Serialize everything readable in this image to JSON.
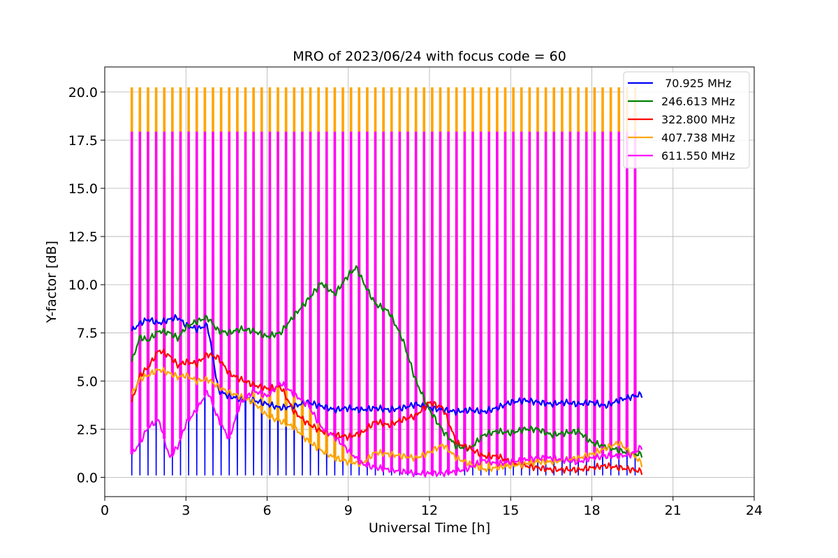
{
  "chart_data": {
    "type": "line",
    "title": "MRO of 2023/06/24 with focus code = 60",
    "xlabel": "Universal Time [h]",
    "ylabel": "Y-factor [dB]",
    "xlim": [
      0,
      24
    ],
    "ylim": [
      -1.0,
      21.3
    ],
    "xticks": [
      0,
      3,
      6,
      9,
      12,
      15,
      18,
      21,
      24
    ],
    "yticks": [
      0.0,
      2.5,
      5.0,
      7.5,
      10.0,
      12.5,
      15.0,
      17.5,
      20.0
    ],
    "xtick_labels": [
      "0",
      "3",
      "6",
      "9",
      "12",
      "15",
      "18",
      "21",
      "24"
    ],
    "ytick_labels": [
      "0.0",
      "2.5",
      "5.0",
      "7.5",
      "10.0",
      "12.5",
      "15.0",
      "17.5",
      "20.0"
    ],
    "grid": true,
    "legend_position": "top-right",
    "calibration_spikes": {
      "start": 1.0,
      "end": 19.85,
      "period": 0.3,
      "width": 0.06,
      "peak_values": {
        "407.738 MHz": 20.2,
        "611.550 MHz": 17.9
      }
    },
    "series": [
      {
        "name": " 70.925 MHz",
        "color": "#0000ff",
        "x": [
          1.0,
          1.3,
          1.6,
          2.0,
          2.4,
          2.7,
          3.0,
          3.4,
          3.8,
          4.2,
          4.6,
          5.0,
          5.5,
          6.0,
          6.5,
          7.0,
          7.5,
          8.0,
          8.5,
          9.0,
          9.5,
          10.0,
          10.5,
          11.0,
          11.5,
          12.0,
          12.5,
          13.0,
          13.5,
          14.0,
          14.5,
          15.0,
          15.5,
          16.0,
          16.5,
          17.0,
          17.5,
          18.0,
          18.5,
          19.0,
          19.5,
          19.85
        ],
        "y": [
          7.6,
          8.0,
          8.2,
          8.0,
          8.2,
          8.3,
          7.9,
          7.7,
          7.9,
          4.5,
          4.2,
          4.1,
          4.0,
          3.8,
          3.6,
          3.7,
          3.9,
          3.7,
          3.5,
          3.6,
          3.5,
          3.6,
          3.5,
          3.6,
          3.8,
          3.6,
          3.5,
          3.4,
          3.5,
          3.4,
          3.6,
          3.9,
          4.0,
          3.9,
          3.8,
          3.9,
          3.8,
          3.9,
          3.7,
          4.0,
          4.2,
          4.3
        ]
      },
      {
        "name": "246.613 MHz",
        "color": "#008000",
        "x": [
          1.0,
          1.3,
          1.6,
          2.0,
          2.4,
          2.7,
          3.0,
          3.4,
          3.8,
          4.2,
          4.6,
          5.0,
          5.5,
          6.0,
          6.5,
          7.0,
          7.5,
          8.0,
          8.5,
          9.0,
          9.3,
          9.6,
          10.0,
          10.5,
          11.0,
          11.5,
          12.0,
          12.5,
          13.0,
          13.5,
          14.0,
          14.5,
          15.0,
          15.5,
          16.0,
          16.5,
          17.0,
          17.5,
          18.0,
          18.5,
          19.0,
          19.5,
          19.85
        ],
        "y": [
          6.0,
          7.3,
          7.1,
          7.6,
          7.5,
          7.2,
          7.8,
          8.1,
          8.3,
          7.6,
          7.5,
          7.7,
          7.6,
          7.3,
          7.5,
          8.4,
          9.2,
          10.1,
          9.5,
          10.5,
          10.9,
          10.0,
          9.0,
          8.6,
          7.2,
          5.0,
          3.5,
          2.4,
          1.6,
          1.5,
          2.2,
          2.4,
          2.3,
          2.5,
          2.5,
          2.2,
          2.3,
          2.4,
          1.8,
          1.6,
          1.4,
          1.2,
          1.2
        ]
      },
      {
        "name": "322.800 MHz",
        "color": "#ff0000",
        "x": [
          1.0,
          1.3,
          1.6,
          2.0,
          2.4,
          2.7,
          3.0,
          3.4,
          3.8,
          4.2,
          4.6,
          5.0,
          5.5,
          6.0,
          6.5,
          7.0,
          7.5,
          8.0,
          8.5,
          9.0,
          9.5,
          10.0,
          10.5,
          11.0,
          11.5,
          12.0,
          12.5,
          13.0,
          13.5,
          14.0,
          14.5,
          15.0,
          15.5,
          16.0,
          16.5,
          17.0,
          17.5,
          18.0,
          18.5,
          19.0,
          19.5,
          19.85
        ],
        "y": [
          3.9,
          5.3,
          5.7,
          6.6,
          6.3,
          5.8,
          6.0,
          5.9,
          6.4,
          6.2,
          5.4,
          5.1,
          4.8,
          4.6,
          4.7,
          3.4,
          2.8,
          2.4,
          2.2,
          2.1,
          2.3,
          2.9,
          2.7,
          3.0,
          3.2,
          3.9,
          3.6,
          1.8,
          1.5,
          1.1,
          1.1,
          0.8,
          0.6,
          0.5,
          0.4,
          0.4,
          0.4,
          0.5,
          0.6,
          0.5,
          0.4,
          0.3
        ]
      },
      {
        "name": "407.738 MHz",
        "color": "#ffa500",
        "x": [
          1.0,
          1.3,
          1.6,
          2.0,
          2.4,
          2.7,
          3.0,
          3.4,
          3.8,
          4.2,
          4.6,
          5.0,
          5.5,
          6.0,
          6.5,
          7.0,
          7.5,
          8.0,
          8.5,
          9.0,
          9.5,
          10.0,
          10.5,
          11.0,
          11.5,
          12.0,
          12.5,
          13.0,
          13.5,
          14.0,
          14.5,
          15.0,
          15.5,
          16.0,
          16.5,
          17.0,
          17.5,
          18.0,
          18.5,
          19.0,
          19.5,
          19.85
        ],
        "y": [
          4.3,
          5.1,
          5.3,
          5.6,
          5.4,
          5.2,
          5.3,
          5.0,
          5.1,
          4.7,
          4.4,
          4.2,
          3.9,
          3.2,
          2.9,
          2.6,
          1.9,
          1.4,
          1.0,
          0.8,
          0.7,
          1.3,
          1.2,
          1.1,
          1.0,
          1.3,
          1.7,
          1.0,
          0.7,
          0.4,
          0.5,
          0.6,
          0.7,
          0.8,
          0.8,
          0.9,
          1.0,
          1.2,
          1.5,
          1.8,
          1.2,
          0.7
        ]
      },
      {
        "name": "611.550 MHz",
        "color": "#ff00ff",
        "x": [
          1.0,
          1.3,
          1.6,
          2.0,
          2.4,
          2.7,
          3.0,
          3.4,
          3.8,
          4.2,
          4.6,
          5.0,
          5.5,
          6.0,
          6.5,
          7.0,
          7.5,
          8.0,
          8.5,
          9.0,
          9.5,
          10.0,
          10.5,
          11.0,
          11.5,
          12.0,
          12.5,
          13.0,
          13.5,
          14.0,
          14.5,
          15.0,
          15.5,
          16.0,
          16.5,
          17.0,
          17.5,
          18.0,
          18.5,
          19.0,
          19.5,
          19.85
        ],
        "y": [
          1.2,
          1.8,
          2.6,
          3.0,
          1.0,
          1.6,
          2.8,
          3.5,
          4.5,
          3.0,
          2.0,
          3.8,
          4.5,
          4.2,
          4.9,
          4.3,
          3.8,
          2.6,
          2.1,
          1.4,
          0.7,
          0.5,
          0.4,
          0.3,
          0.2,
          0.2,
          0.2,
          0.3,
          0.5,
          0.9,
          0.7,
          0.8,
          0.9,
          1.0,
          1.0,
          0.9,
          0.8,
          1.0,
          1.1,
          1.1,
          1.2,
          1.6
        ]
      }
    ]
  }
}
